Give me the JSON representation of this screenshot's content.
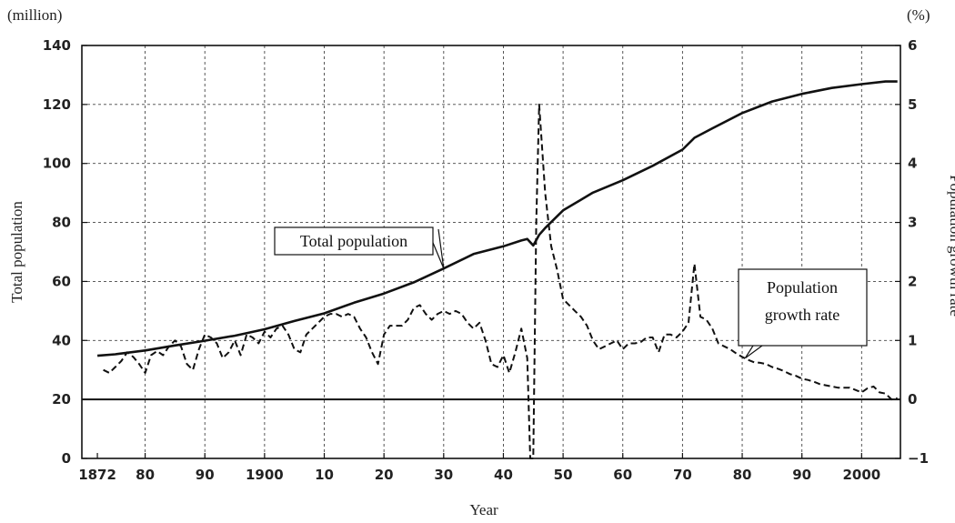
{
  "chart_data": {
    "type": "line",
    "xlabel": "Year",
    "ylabel_left": "Total population",
    "ylabel_right": "Population growth rate",
    "unit_left": "(million)",
    "unit_right": "(%)",
    "xlim": [
      1872,
      2006
    ],
    "ylim_left": [
      0,
      140
    ],
    "ylim_right": [
      -1,
      6
    ],
    "x_ticks": [
      1872,
      1880,
      1890,
      1900,
      1910,
      1920,
      1930,
      1940,
      1950,
      1960,
      1970,
      1980,
      1990,
      2000
    ],
    "x_tick_labels": [
      "1872",
      "80",
      "90",
      "1900",
      "10",
      "20",
      "30",
      "40",
      "50",
      "60",
      "70",
      "80",
      "90",
      "2000"
    ],
    "y_ticks_left": [
      0,
      20,
      40,
      60,
      80,
      100,
      120,
      140
    ],
    "y_ticks_right": [
      -1,
      0,
      1,
      2,
      3,
      4,
      5,
      6
    ],
    "grid": true,
    "grid_style": "dashed",
    "annotations": [
      {
        "text": "Total population",
        "series": 0
      },
      {
        "text": "Population\ngrowth rate",
        "series": 1
      }
    ],
    "series": [
      {
        "name": "Total population",
        "axis": "left",
        "style": "solid",
        "points": [
          [
            1872,
            34.8
          ],
          [
            1875,
            35.3
          ],
          [
            1880,
            36.6
          ],
          [
            1885,
            38.3
          ],
          [
            1890,
            39.9
          ],
          [
            1895,
            41.6
          ],
          [
            1900,
            43.8
          ],
          [
            1905,
            46.6
          ],
          [
            1910,
            49.2
          ],
          [
            1915,
            52.8
          ],
          [
            1920,
            55.9
          ],
          [
            1925,
            59.7
          ],
          [
            1930,
            64.4
          ],
          [
            1935,
            69.3
          ],
          [
            1940,
            71.9
          ],
          [
            1943,
            73.9
          ],
          [
            1944,
            74.4
          ],
          [
            1945,
            72.2
          ],
          [
            1946,
            75.8
          ],
          [
            1947,
            78.1
          ],
          [
            1950,
            84.1
          ],
          [
            1955,
            90.1
          ],
          [
            1960,
            94.3
          ],
          [
            1965,
            99.2
          ],
          [
            1970,
            104.7
          ],
          [
            1972,
            108.7
          ],
          [
            1975,
            111.9
          ],
          [
            1980,
            117.1
          ],
          [
            1985,
            121.0
          ],
          [
            1990,
            123.6
          ],
          [
            1995,
            125.6
          ],
          [
            2000,
            126.9
          ],
          [
            2004,
            127.8
          ],
          [
            2006,
            127.8
          ]
        ]
      },
      {
        "name": "Population growth rate",
        "axis": "right",
        "style": "dashed",
        "points": [
          [
            1873,
            0.5
          ],
          [
            1874,
            0.45
          ],
          [
            1875,
            0.55
          ],
          [
            1876,
            0.65
          ],
          [
            1877,
            0.8
          ],
          [
            1878,
            0.72
          ],
          [
            1879,
            0.6
          ],
          [
            1880,
            0.45
          ],
          [
            1881,
            0.75
          ],
          [
            1882,
            0.82
          ],
          [
            1883,
            0.75
          ],
          [
            1884,
            0.9
          ],
          [
            1885,
            1.0
          ],
          [
            1886,
            0.9
          ],
          [
            1887,
            0.6
          ],
          [
            1888,
            0.5
          ],
          [
            1889,
            0.85
          ],
          [
            1890,
            1.1
          ],
          [
            1891,
            1.05
          ],
          [
            1892,
            0.95
          ],
          [
            1893,
            0.7
          ],
          [
            1894,
            0.8
          ],
          [
            1895,
            1.0
          ],
          [
            1896,
            0.75
          ],
          [
            1897,
            1.1
          ],
          [
            1898,
            1.05
          ],
          [
            1899,
            0.95
          ],
          [
            1900,
            1.15
          ],
          [
            1901,
            1.05
          ],
          [
            1902,
            1.2
          ],
          [
            1903,
            1.25
          ],
          [
            1904,
            1.1
          ],
          [
            1905,
            0.85
          ],
          [
            1906,
            0.8
          ],
          [
            1907,
            1.1
          ],
          [
            1908,
            1.2
          ],
          [
            1909,
            1.3
          ],
          [
            1910,
            1.4
          ],
          [
            1911,
            1.45
          ],
          [
            1912,
            1.45
          ],
          [
            1913,
            1.4
          ],
          [
            1914,
            1.45
          ],
          [
            1915,
            1.4
          ],
          [
            1916,
            1.2
          ],
          [
            1917,
            1.05
          ],
          [
            1918,
            0.8
          ],
          [
            1919,
            0.6
          ],
          [
            1920,
            1.1
          ],
          [
            1921,
            1.25
          ],
          [
            1922,
            1.25
          ],
          [
            1923,
            1.25
          ],
          [
            1924,
            1.35
          ],
          [
            1925,
            1.55
          ],
          [
            1926,
            1.6
          ],
          [
            1927,
            1.45
          ],
          [
            1928,
            1.35
          ],
          [
            1929,
            1.45
          ],
          [
            1930,
            1.5
          ],
          [
            1931,
            1.45
          ],
          [
            1932,
            1.5
          ],
          [
            1933,
            1.45
          ],
          [
            1934,
            1.3
          ],
          [
            1935,
            1.2
          ],
          [
            1936,
            1.3
          ],
          [
            1937,
            1.0
          ],
          [
            1938,
            0.6
          ],
          [
            1939,
            0.55
          ],
          [
            1940,
            0.75
          ],
          [
            1941,
            0.45
          ],
          [
            1942,
            0.8
          ],
          [
            1943,
            1.2
          ],
          [
            1944,
            0.7
          ],
          [
            1944.5,
            -1.0
          ],
          [
            1945,
            -1.0
          ],
          [
            1945.5,
            3.0
          ],
          [
            1946,
            5.0
          ],
          [
            1947,
            3.5
          ],
          [
            1948,
            2.6
          ],
          [
            1949,
            2.2
          ],
          [
            1950,
            1.7
          ],
          [
            1951,
            1.6
          ],
          [
            1952,
            1.5
          ],
          [
            1953,
            1.4
          ],
          [
            1954,
            1.25
          ],
          [
            1955,
            1.0
          ],
          [
            1956,
            0.85
          ],
          [
            1957,
            0.9
          ],
          [
            1958,
            0.95
          ],
          [
            1959,
            1.0
          ],
          [
            1960,
            0.85
          ],
          [
            1961,
            0.95
          ],
          [
            1962,
            0.95
          ],
          [
            1963,
            0.97
          ],
          [
            1964,
            1.05
          ],
          [
            1965,
            1.05
          ],
          [
            1966,
            0.8
          ],
          [
            1967,
            1.1
          ],
          [
            1968,
            1.1
          ],
          [
            1969,
            1.05
          ],
          [
            1970,
            1.15
          ],
          [
            1971,
            1.3
          ],
          [
            1972,
            2.3
          ],
          [
            1973,
            1.4
          ],
          [
            1974,
            1.35
          ],
          [
            1975,
            1.2
          ],
          [
            1976,
            0.95
          ],
          [
            1977,
            0.9
          ],
          [
            1978,
            0.85
          ],
          [
            1979,
            0.78
          ],
          [
            1980,
            0.72
          ],
          [
            1981,
            0.67
          ],
          [
            1982,
            0.63
          ],
          [
            1983,
            0.62
          ],
          [
            1984,
            0.6
          ],
          [
            1985,
            0.55
          ],
          [
            1986,
            0.52
          ],
          [
            1987,
            0.48
          ],
          [
            1988,
            0.43
          ],
          [
            1989,
            0.4
          ],
          [
            1990,
            0.35
          ],
          [
            1991,
            0.33
          ],
          [
            1992,
            0.3
          ],
          [
            1993,
            0.26
          ],
          [
            1994,
            0.24
          ],
          [
            1995,
            0.22
          ],
          [
            1996,
            0.2
          ],
          [
            1997,
            0.2
          ],
          [
            1998,
            0.2
          ],
          [
            1999,
            0.16
          ],
          [
            2000,
            0.12
          ],
          [
            2001,
            0.19
          ],
          [
            2002,
            0.22
          ],
          [
            2003,
            0.12
          ],
          [
            2004,
            0.1
          ],
          [
            2005,
            0.0
          ],
          [
            2006,
            0.02
          ]
        ]
      }
    ]
  }
}
